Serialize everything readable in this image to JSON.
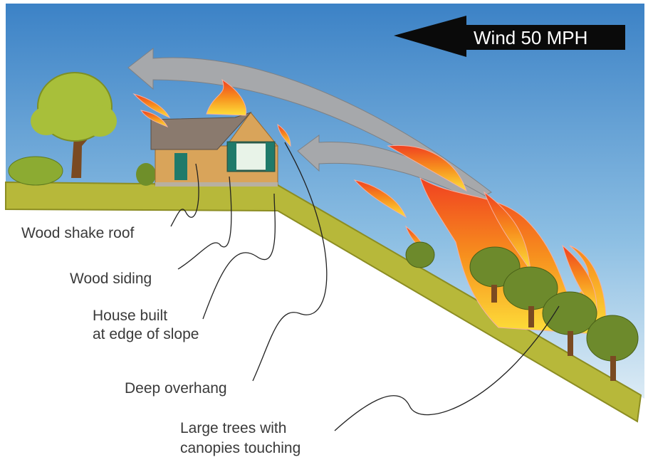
{
  "wind_label": "Wind 50 MPH",
  "labels": [
    {
      "lines": [
        "Wood shake roof"
      ]
    },
    {
      "lines": [
        "Wood siding"
      ]
    },
    {
      "lines": [
        "House built",
        "at edge of slope"
      ]
    },
    {
      "lines": [
        "Deep overhang"
      ]
    },
    {
      "lines": [
        "Large trees with",
        "canopies touching"
      ]
    }
  ]
}
